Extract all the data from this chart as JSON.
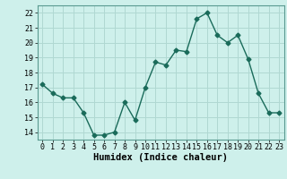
{
  "x": [
    0,
    1,
    2,
    3,
    4,
    5,
    6,
    7,
    8,
    9,
    10,
    11,
    12,
    13,
    14,
    15,
    16,
    17,
    18,
    19,
    20,
    21,
    22,
    23
  ],
  "y": [
    17.2,
    16.6,
    16.3,
    16.3,
    15.3,
    13.8,
    13.8,
    14.0,
    16.0,
    14.8,
    17.0,
    18.7,
    18.5,
    19.5,
    19.4,
    21.6,
    22.0,
    20.5,
    20.0,
    20.5,
    18.9,
    16.6,
    15.3,
    15.3
  ],
  "line_color": "#1a6b5a",
  "marker": "D",
  "markersize": 2.5,
  "linewidth": 1.0,
  "bg_color": "#cef0eb",
  "grid_color": "#b0d8d2",
  "xlabel": "Humidex (Indice chaleur)",
  "ylim": [
    13.5,
    22.5
  ],
  "xlim": [
    -0.5,
    23.5
  ],
  "yticks": [
    14,
    15,
    16,
    17,
    18,
    19,
    20,
    21,
    22
  ],
  "xtick_labels": [
    "0",
    "1",
    "2",
    "3",
    "4",
    "5",
    "6",
    "7",
    "8",
    "9",
    "10",
    "11",
    "12",
    "13",
    "14",
    "15",
    "16",
    "17",
    "18",
    "19",
    "20",
    "21",
    "22",
    "23"
  ],
  "tick_fontsize": 6.0,
  "xlabel_fontsize": 7.5
}
